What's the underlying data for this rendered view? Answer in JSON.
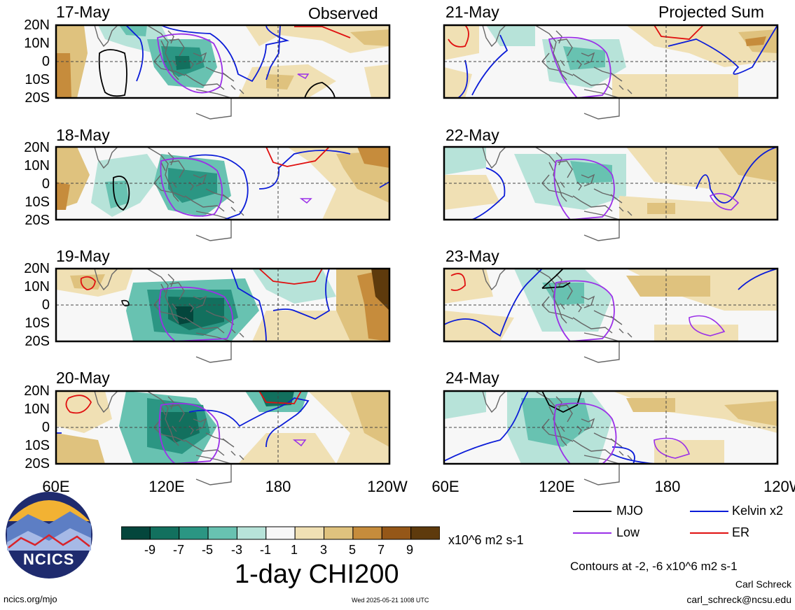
{
  "header": {
    "left_label": "Observed",
    "right_label": "Projected Sum"
  },
  "panels": [
    {
      "date": "17-May",
      "column": "observed"
    },
    {
      "date": "18-May",
      "column": "observed"
    },
    {
      "date": "19-May",
      "column": "observed"
    },
    {
      "date": "20-May",
      "column": "observed"
    },
    {
      "date": "21-May",
      "column": "projected"
    },
    {
      "date": "22-May",
      "column": "projected"
    },
    {
      "date": "23-May",
      "column": "projected"
    },
    {
      "date": "24-May",
      "column": "projected"
    }
  ],
  "lat_labels": [
    "20N",
    "10N",
    "0",
    "10S",
    "20S"
  ],
  "lon_labels": [
    "60E",
    "120E",
    "180",
    "120W"
  ],
  "colorbar": {
    "title": "1-day CHI200",
    "units": "x10^6 m2 s-1",
    "ticks": [
      "-9",
      "-7",
      "-5",
      "-3",
      "-1",
      "1",
      "3",
      "5",
      "7",
      "9"
    ],
    "colors": [
      "#04463c",
      "#12705e",
      "#2b9683",
      "#68c2b1",
      "#b7e3d9",
      "#f7f7f7",
      "#f0e0b4",
      "#dfc27e",
      "#c68c3c",
      "#955718",
      "#5e3a0c"
    ]
  },
  "legend": {
    "items": [
      {
        "label": "MJO",
        "color": "#000000"
      },
      {
        "label": "Kelvin x2",
        "color": "#0b1cd8"
      },
      {
        "label": "Low",
        "color": "#9b30e8"
      },
      {
        "label": "ER",
        "color": "#e01010"
      }
    ],
    "contour_note": "Contours at -2, -6 x10^6 m2 s-1"
  },
  "credits": {
    "author": "Carl Schreck",
    "email": "carl_schreck@ncsu.edu",
    "site": "ncics.org/mjo",
    "timestamp": "Wed 2025-05-21 1008 UTC",
    "logo_text": "NCICS"
  }
}
